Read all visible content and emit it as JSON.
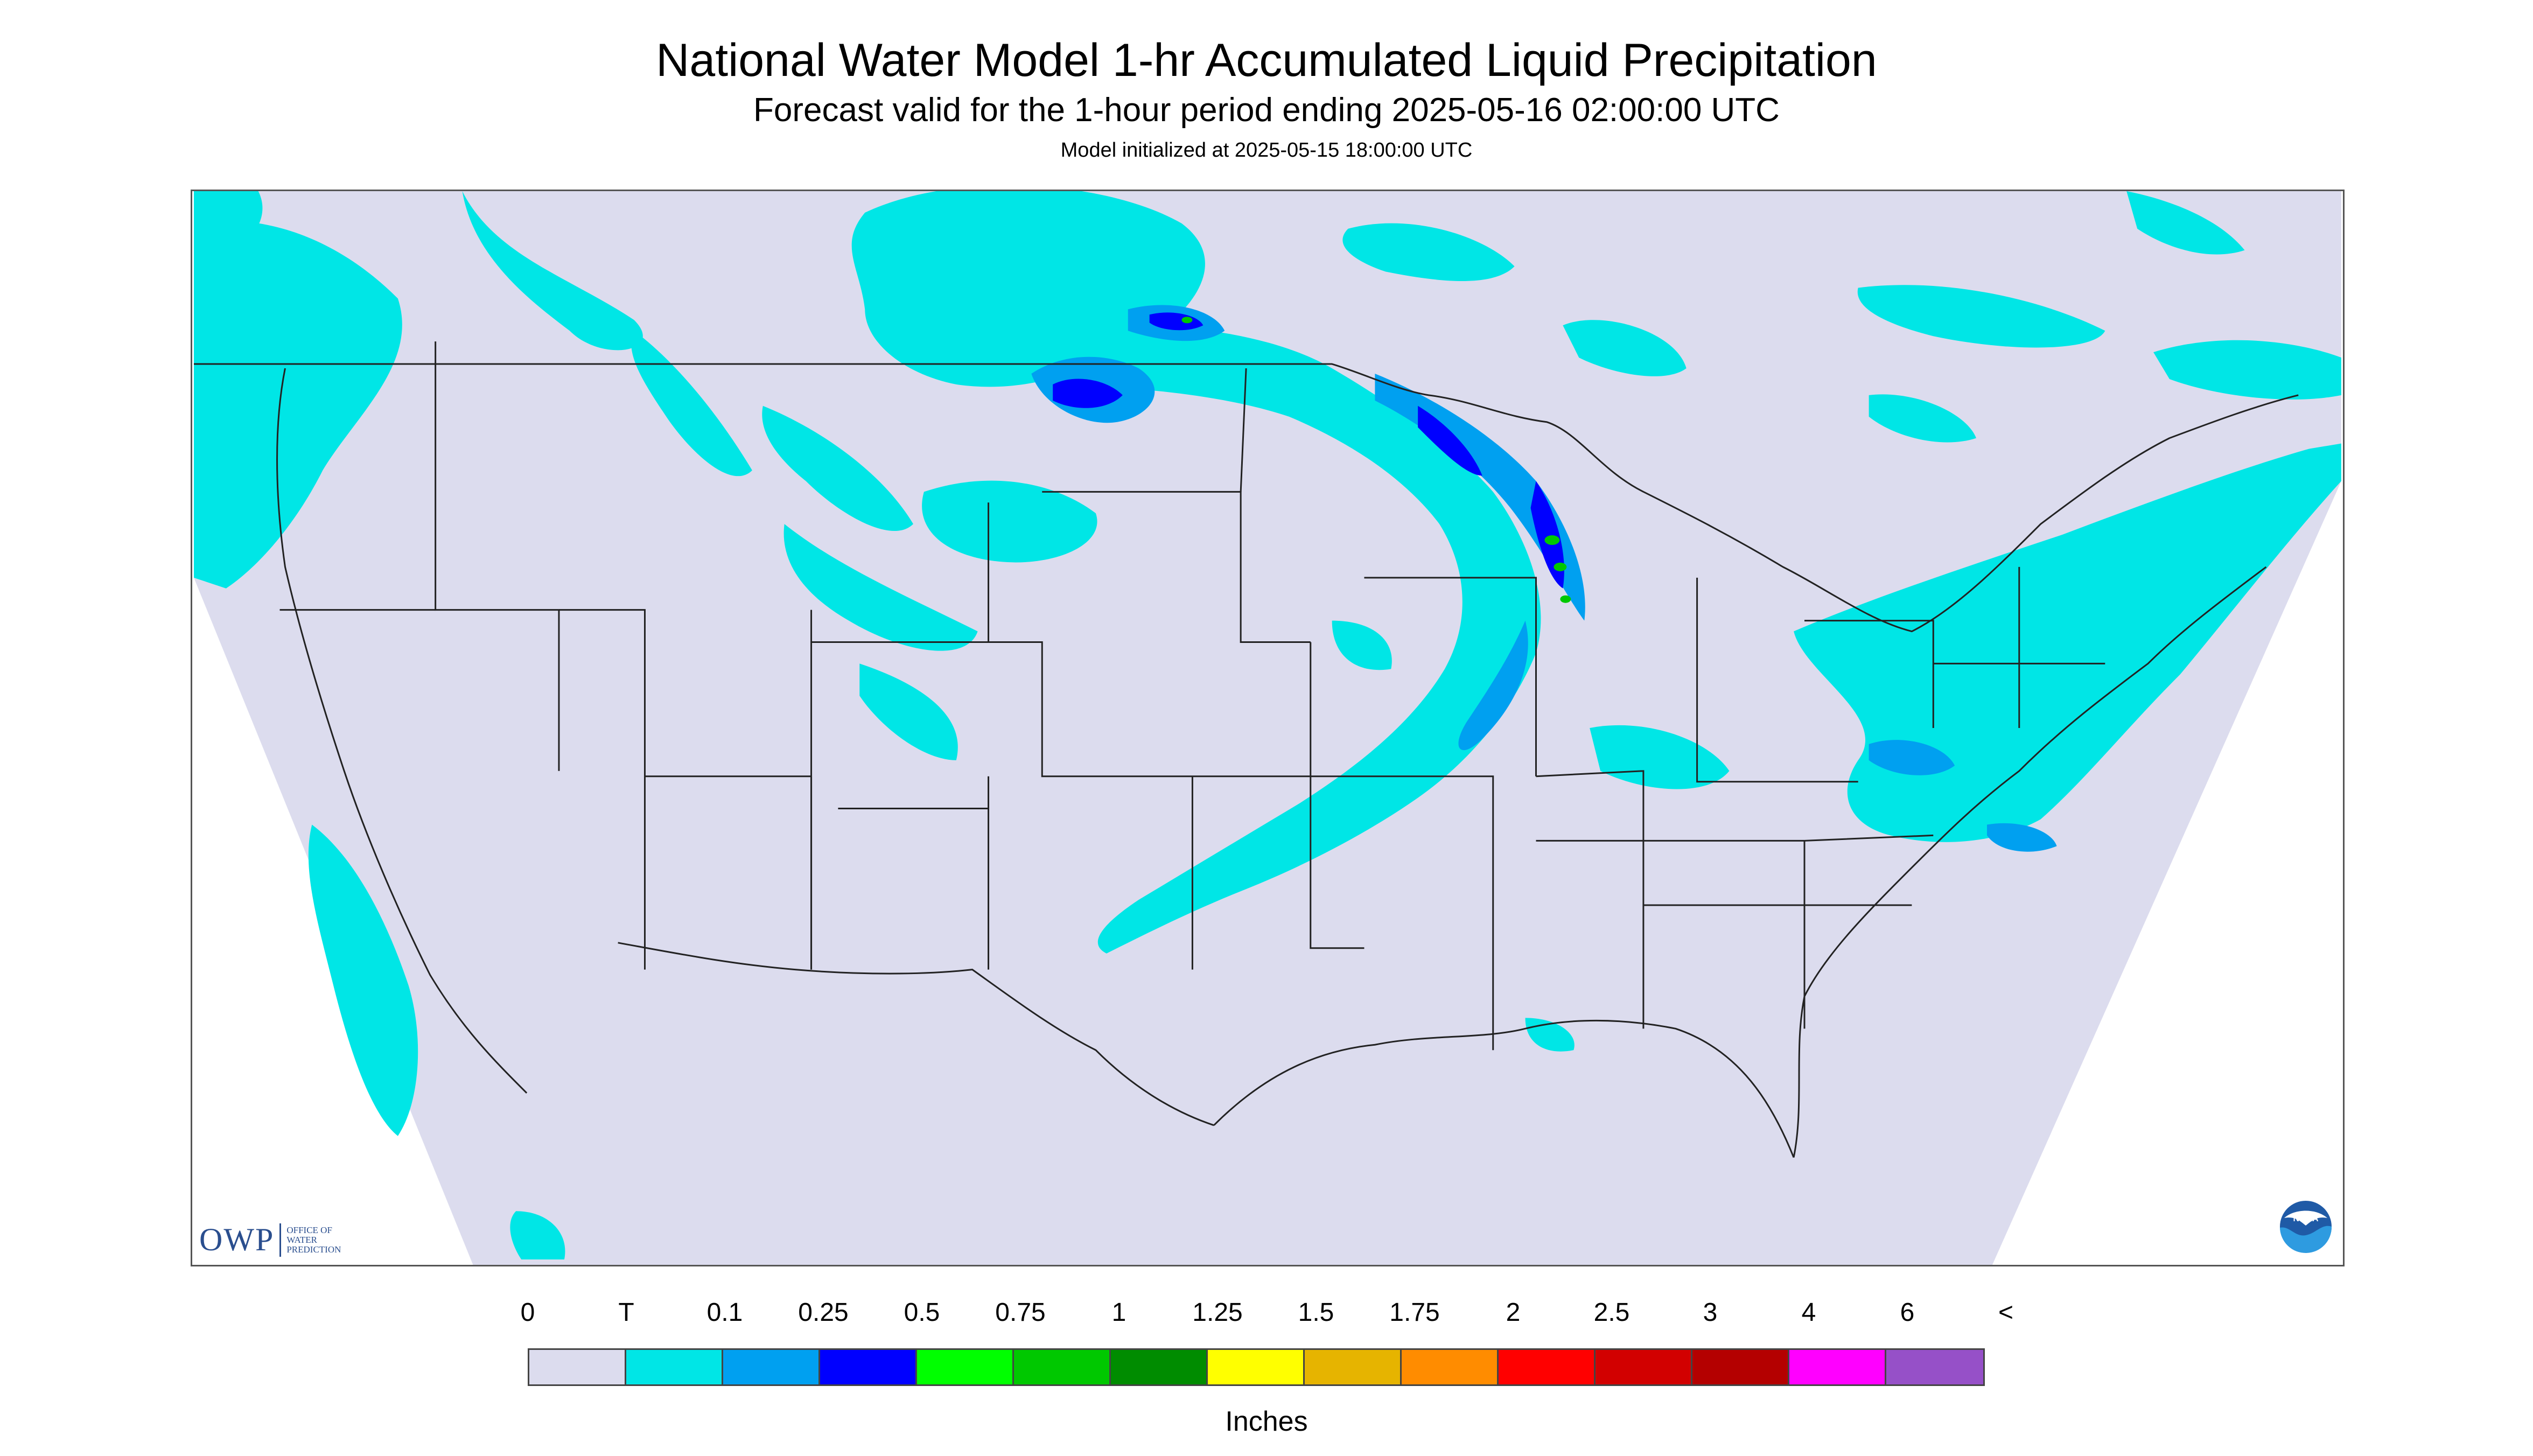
{
  "title": "National Water Model 1-hr Accumulated Liquid Precipitation",
  "subtitle": "Forecast valid for the 1-hour period ending 2025-05-16 02:00:00 UTC",
  "initialized": "Model initialized at 2025-05-15 18:00:00 UTC",
  "owp": {
    "logo_text": "OWP",
    "line1": "OFFICE OF",
    "line2": "WATER",
    "line3": "PREDICTION"
  },
  "noaa_label": "NOAA",
  "legend": {
    "labels": [
      "0",
      "T",
      "0.1",
      "0.25",
      "0.5",
      "0.75",
      "1",
      "1.25",
      "1.5",
      "1.75",
      "2",
      "2.5",
      "3",
      "4",
      "6",
      "<"
    ],
    "colors": [
      "#dcdcee",
      "#00e6e6",
      "#00a0f0",
      "#0000ff",
      "#00ff00",
      "#00c800",
      "#008c00",
      "#ffff00",
      "#e6b400",
      "#ff8c00",
      "#ff0000",
      "#d20000",
      "#b40000",
      "#ff00ff",
      "#9650c8"
    ],
    "units": "Inches"
  },
  "map": {
    "domain_color": "#dcdcee",
    "outside_color": "#ffffff",
    "boundary_color": "#222222"
  }
}
